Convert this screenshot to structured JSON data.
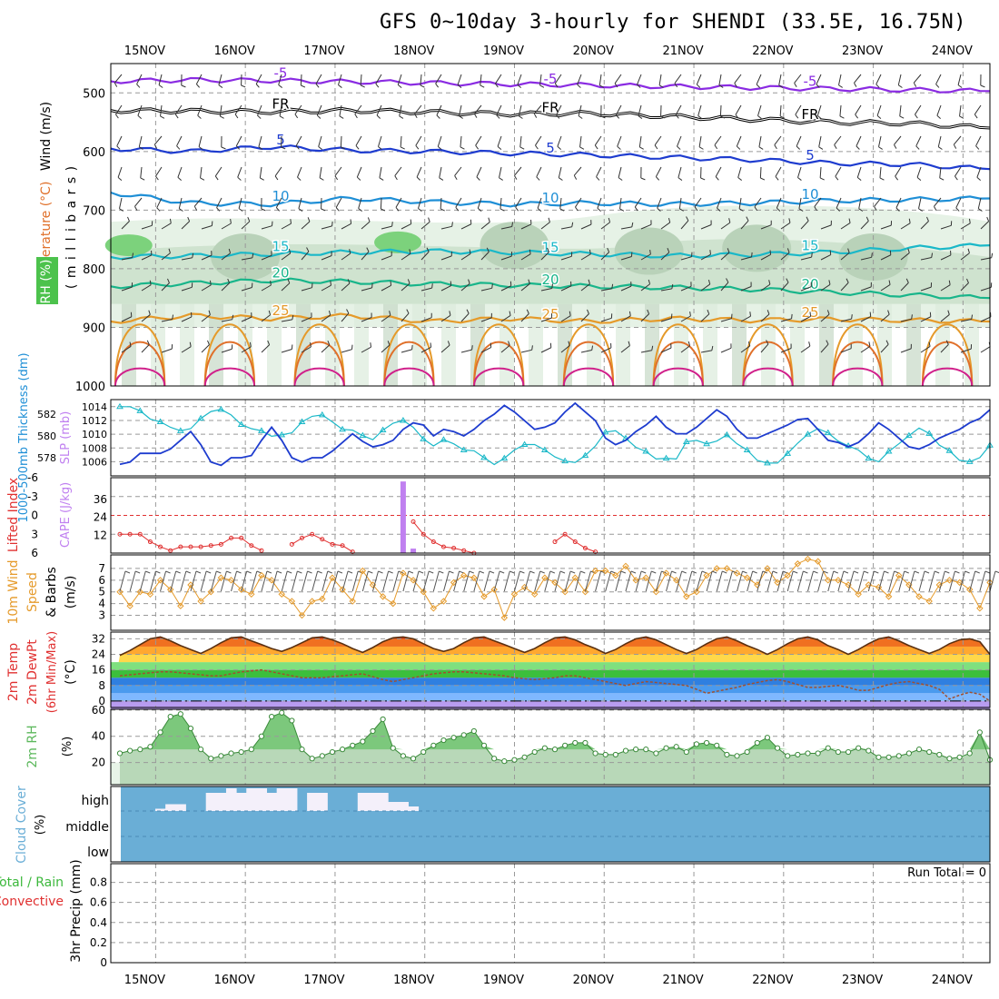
{
  "title": "GFS 0~10day 3-hourly for SHENDI (33.5E, 16.75N)",
  "colors": {
    "purple": "#8a2be2",
    "black": "#000000",
    "blue": "#1e3ccf",
    "skyblue": "#1f8fd6",
    "cyan": "#1ab8c8",
    "teal": "#18b58a",
    "orange": "#e59a2a",
    "darkorange": "#e0702a",
    "magenta": "#d0208a",
    "cape": "#c080f0",
    "cloud": "#6aaed6",
    "rain_green": "#3cb83c",
    "conv_red": "#e03030",
    "rh2m": "#5cb85c"
  },
  "chart_data": {
    "type": "meteogram",
    "dates": [
      "15NOV",
      "16NOV",
      "17NOV",
      "18NOV",
      "19NOV",
      "20NOV",
      "21NOV",
      "22NOV",
      "23NOV",
      "24NOV"
    ],
    "panels": [
      {
        "id": "upper",
        "labels": {
          "wind": "Wind (m/s)",
          "temperature": "Temperature (°C)",
          "rh": "RH (%)",
          "pressure": "( m i l l i b a r s )"
        },
        "ylim": [
          1000,
          450
        ],
        "yticks": [
          500,
          600,
          700,
          800,
          900,
          1000
        ],
        "isotherms": [
          {
            "label": "-5",
            "color_key": "purple",
            "levels": [
              480,
              478,
              479,
              481,
              483,
              485,
              487,
              489,
              491,
              493,
              495,
              497
            ]
          },
          {
            "label": "FR",
            "color_key": "black",
            "levels": [
              530,
              531,
              532,
              530,
              533,
              536,
              535,
              540,
              545,
              550,
              552,
              560
            ]
          },
          {
            "label": "5",
            "color_key": "blue",
            "levels": [
              595,
              600,
              592,
              598,
              600,
              603,
              606,
              610,
              614,
              620,
              622,
              630
            ]
          },
          {
            "label": "10",
            "color_key": "skyblue",
            "levels": [
              670,
              688,
              690,
              680,
              686,
              690,
              688,
              690,
              688,
              684,
              682,
              680
            ]
          },
          {
            "label": "15",
            "color_key": "cyan",
            "levels": [
              780,
              778,
              775,
              772,
              770,
              772,
              775,
              778,
              776,
              772,
              765,
              760
            ]
          },
          {
            "label": "20",
            "color_key": "teal",
            "levels": [
              830,
              825,
              820,
              822,
              826,
              828,
              830,
              832,
              835,
              840,
              845,
              850
            ]
          },
          {
            "label": "25",
            "color_key": "orange",
            "levels": [
              890,
              880,
              885,
              880,
              890,
              885,
              890,
              885,
              888,
              886,
              888,
              890
            ]
          }
        ],
        "rh_patches": [
          {
            "day": 0.2,
            "p": 760,
            "level": "high"
          },
          {
            "day": 3.2,
            "p": 755,
            "level": "high"
          },
          {
            "day": 1.5,
            "p": 780,
            "level": "mid"
          },
          {
            "day": 4.5,
            "p": 760,
            "level": "mid"
          },
          {
            "day": 6.0,
            "p": 770,
            "level": "mid"
          },
          {
            "day": 7.2,
            "p": 765,
            "level": "mid"
          },
          {
            "day": 8.5,
            "p": 780,
            "level": "mid"
          }
        ]
      },
      {
        "id": "thickness",
        "labels": {
          "left": "1000-500mb Thickness (dm)",
          "right": "SLP (mb)"
        },
        "thickness_ticks": [
          578,
          580,
          582
        ],
        "slp_ticks": [
          1006,
          1008,
          1010,
          1012,
          1014
        ],
        "slp": [
          1014.0,
          1014.0,
          1013.4,
          1012.2,
          1011.8,
          1011.0,
          1010.5,
          1010.8,
          1012.3,
          1013.3,
          1013.6,
          1012.8,
          1011.4,
          1010.8,
          1010.5,
          1009.7,
          1009.9,
          1010.2,
          1011.8,
          1012.6,
          1012.8,
          1011.8,
          1010.7,
          1010.6,
          1009.8,
          1009.2,
          1010.6,
          1011.6,
          1012.0,
          1011.0,
          1009.3,
          1008.3,
          1009.2,
          1008.6,
          1007.7,
          1007.6,
          1006.6,
          1005.6,
          1006.5,
          1007.7,
          1008.5,
          1008.5,
          1007.7,
          1006.7,
          1006.1,
          1005.9,
          1006.9,
          1008.3,
          1010.3,
          1010.5,
          1009.4,
          1008.1,
          1007.5,
          1006.4,
          1006.5,
          1006.4,
          1008.9,
          1009.1,
          1008.6,
          1009.0,
          1009.9,
          1008.6,
          1007.7,
          1006.2,
          1005.8,
          1005.8,
          1007.2,
          1008.7,
          1010.0,
          1010.8,
          1010.2,
          1009.0,
          1008.3,
          1007.7,
          1006.5,
          1006.0,
          1007.5,
          1008.6,
          1009.8,
          1010.9,
          1010.1,
          1008.4,
          1007.6,
          1006.2,
          1006.0,
          1006.6,
          1008.4
        ],
        "thickness": [
          577.4,
          577.6,
          578.4,
          578.4,
          578.4,
          578.8,
          579.6,
          580.4,
          579.2,
          577.6,
          577.3,
          578.0,
          578.0,
          578.2,
          579.6,
          580.8,
          579.6,
          578.0,
          577.6,
          578.0,
          578.0,
          578.6,
          579.4,
          580.2,
          579.5,
          579.0,
          579.2,
          579.6,
          580.6,
          581.2,
          581.0,
          580.0,
          580.6,
          580.4,
          580.0,
          580.6,
          581.4,
          582.0,
          582.8,
          582.2,
          581.4,
          580.6,
          580.8,
          581.2,
          582.2,
          583.0,
          582.2,
          581.4,
          579.8,
          579.2,
          579.6,
          580.4,
          581.0,
          581.8,
          580.8,
          580.2,
          580.2,
          580.8,
          581.6,
          582.4,
          581.8,
          580.6,
          579.8,
          579.8,
          580.2,
          580.6,
          581.0,
          581.5,
          581.6,
          580.6,
          579.6,
          579.4,
          579.0,
          579.4,
          580.2,
          581.2,
          580.6,
          579.8,
          579.0,
          578.8,
          579.2,
          579.8,
          580.2,
          580.6,
          581.2,
          581.6,
          582.4
        ]
      },
      {
        "id": "cape",
        "labels": {
          "left": "Lifted Index",
          "right": "CAPE (J/kg)"
        },
        "li_ticks": [
          "-6",
          "-3",
          "0",
          "3",
          "6"
        ],
        "cape_ticks": [
          "36",
          "24",
          "12"
        ],
        "lifted_index": [
          3.0,
          3.0,
          3.0,
          4.2,
          5.0,
          5.6,
          5.0,
          5.0,
          5.0,
          4.8,
          4.6,
          3.6,
          3.6,
          4.8,
          5.6,
          null,
          null,
          4.6,
          3.6,
          3.0,
          3.8,
          4.6,
          4.8,
          5.8,
          null,
          null,
          null,
          null,
          null,
          1.0,
          3.0,
          4.2,
          5.0,
          5.2,
          5.6,
          6.0,
          null,
          null,
          null,
          null,
          null,
          null,
          null,
          4.2,
          3.0,
          4.2,
          5.2,
          5.8,
          null,
          null,
          null,
          null,
          null,
          null,
          null,
          null,
          null,
          null,
          null,
          null,
          null,
          null,
          null,
          null,
          null,
          null,
          null,
          null,
          null,
          null,
          null,
          null,
          null,
          null,
          null,
          null,
          null,
          null,
          null,
          null,
          null,
          null,
          null,
          null,
          null,
          null,
          null
        ],
        "cape": [
          0,
          0,
          0,
          0,
          0,
          0,
          0,
          0,
          0,
          0,
          0,
          0,
          0,
          0,
          0,
          0,
          0,
          0,
          0,
          0,
          0,
          0,
          0,
          0,
          0,
          0,
          0,
          0,
          48,
          3,
          0,
          0,
          0,
          0,
          0,
          0,
          0,
          0,
          0,
          0,
          0,
          0,
          0,
          0,
          0,
          0,
          0,
          0,
          0,
          0,
          0,
          0,
          0,
          0,
          0,
          0,
          0,
          0,
          0,
          0,
          0,
          0,
          0,
          0,
          0,
          0,
          0,
          0,
          0,
          0,
          0,
          0,
          0,
          0,
          0,
          0,
          0,
          0,
          0,
          0,
          0,
          0,
          0,
          0,
          0,
          0,
          0
        ]
      },
      {
        "id": "wind10m",
        "labels": {
          "left": "10m Wind",
          "mid": "Speed",
          "right": "& Barbs",
          "unit": "(m/s)"
        },
        "yticks": [
          3,
          4,
          5,
          6,
          7
        ],
        "speed": [
          5.0,
          3.8,
          5.0,
          4.8,
          6.0,
          5.2,
          3.8,
          5.6,
          4.2,
          5.0,
          6.2,
          6.0,
          5.2,
          4.8,
          6.4,
          6.0,
          4.8,
          4.2,
          3.0,
          4.2,
          4.4,
          6.2,
          5.2,
          4.2,
          6.8,
          5.6,
          4.6,
          4.0,
          6.6,
          6.0,
          5.0,
          3.6,
          4.2,
          5.8,
          6.4,
          6.2,
          4.6,
          5.2,
          2.8,
          4.8,
          5.4,
          4.8,
          6.2,
          5.8,
          5.0,
          6.2,
          5.0,
          6.8,
          6.8,
          6.4,
          7.2,
          6.0,
          6.2,
          5.0,
          6.6,
          6.0,
          4.6,
          5.0,
          6.4,
          7.0,
          7.0,
          6.6,
          6.2,
          5.6,
          7.0,
          5.8,
          6.4,
          7.4,
          7.8,
          7.6,
          6.0,
          6.0,
          5.6,
          4.8,
          5.6,
          5.4,
          4.6,
          6.4,
          5.6,
          4.6,
          4.2,
          5.6,
          6.0,
          5.8,
          5.2,
          3.6,
          5.8
        ],
        "barbs": "NNE 3-8 m/s"
      },
      {
        "id": "temp2m",
        "labels": {
          "temp": "2m Temp",
          "dewpt": "2m DewPt",
          "minmax": "(6hr Min/Max)",
          "unit": "(°C)"
        },
        "yticks": [
          0,
          8,
          16,
          24,
          32
        ],
        "temp": [
          23.5,
          26,
          29,
          32,
          33,
          31,
          28.5,
          26.5,
          24.5,
          27,
          30,
          32.5,
          33,
          31,
          29,
          27,
          25.5,
          27.5,
          30,
          32.5,
          33,
          31.5,
          29.5,
          27,
          25,
          27.5,
          30.5,
          32.5,
          33,
          32,
          29.5,
          27,
          25.5,
          27,
          30,
          32.5,
          33,
          31,
          29,
          27,
          25,
          27,
          30,
          32.5,
          33,
          31.5,
          29,
          27,
          24.5,
          26.5,
          29.5,
          32,
          33,
          31.5,
          29,
          26.5,
          24.5,
          26.5,
          29.5,
          32,
          33,
          31,
          28.5,
          26.5,
          24,
          26.5,
          29.5,
          32,
          33,
          31.5,
          28.5,
          26.5,
          24,
          26.5,
          29.5,
          32,
          33,
          31,
          28.5,
          26.5,
          24.5,
          26.5,
          29.5,
          31.5,
          32,
          30.5,
          24
        ],
        "dewpoint": [
          13,
          13.5,
          14,
          14.5,
          15,
          15,
          14.5,
          14,
          13.5,
          13,
          13,
          14,
          15,
          15.5,
          16,
          15,
          14,
          13,
          12,
          12,
          12,
          12.5,
          13,
          13.5,
          14,
          12.5,
          11,
          10,
          11,
          12,
          13,
          14,
          14.5,
          15,
          15,
          14.5,
          14,
          13.5,
          13,
          12,
          11.5,
          11,
          11.5,
          12,
          13,
          13,
          12,
          11,
          10,
          9,
          8,
          9,
          10,
          9.5,
          9,
          8.5,
          8,
          6,
          4,
          5,
          6,
          7,
          8.5,
          9.5,
          10.5,
          11,
          10,
          8.5,
          7,
          7,
          7.5,
          8,
          7,
          5.5,
          5.5,
          7,
          8.5,
          9.5,
          10,
          9,
          8,
          6,
          1,
          3,
          4.5,
          3.5,
          0
        ]
      },
      {
        "id": "rh2m",
        "labels": {
          "left": "2m RH",
          "unit": "(%)"
        },
        "yticks": [
          20,
          40,
          60
        ],
        "rh": [
          27,
          29,
          30,
          32,
          43,
          55,
          57,
          46,
          30,
          23,
          25,
          27,
          28,
          30,
          40,
          55,
          58,
          52,
          30,
          23,
          25,
          28,
          30,
          33,
          36,
          44,
          53,
          31,
          25,
          23,
          28,
          33,
          37,
          39,
          41,
          44,
          33,
          23,
          21,
          22,
          24,
          28,
          31,
          30,
          33,
          35,
          35,
          27,
          26,
          26,
          29,
          30,
          30,
          27,
          31,
          32,
          28,
          34,
          35,
          33,
          26,
          25,
          28,
          35,
          39,
          31,
          25,
          26,
          27,
          27,
          31,
          28,
          28,
          31,
          29,
          24,
          24,
          25,
          27,
          30,
          28,
          26,
          23,
          24,
          27,
          43,
          22
        ]
      },
      {
        "id": "cloud",
        "labels": {
          "left": "Cloud Cover",
          "unit": "(%)",
          "high": "high",
          "middle": "middle",
          "low": "low"
        },
        "high_cover": [
          0,
          0,
          0,
          0,
          10,
          30,
          30,
          0,
          0,
          80,
          80,
          100,
          80,
          100,
          100,
          80,
          100,
          100,
          0,
          80,
          80,
          0,
          0,
          0,
          80,
          80,
          80,
          40,
          40,
          20,
          0,
          0,
          0,
          0,
          0,
          0,
          0,
          0,
          0,
          0,
          0,
          0,
          0,
          0,
          0,
          0,
          0,
          0,
          0,
          0,
          0,
          0,
          0,
          0,
          0,
          0,
          0,
          0,
          0,
          0,
          0,
          0,
          0,
          0,
          0,
          0,
          0,
          0,
          0,
          0,
          0,
          0,
          0,
          0,
          0,
          0,
          0,
          0,
          0,
          0,
          0,
          0,
          0,
          0,
          0,
          0,
          0
        ]
      },
      {
        "id": "precip",
        "labels": {
          "left1": "Total / Rain",
          "left2": "Convective",
          "mid": "3hr Precip (mm)",
          "run_total": "Run Total = 0"
        },
        "yticks": [
          "0",
          "0.2",
          "0.4",
          "0.6",
          "0.8"
        ],
        "total": [
          0,
          0,
          0,
          0,
          0,
          0,
          0,
          0,
          0,
          0
        ]
      }
    ]
  }
}
